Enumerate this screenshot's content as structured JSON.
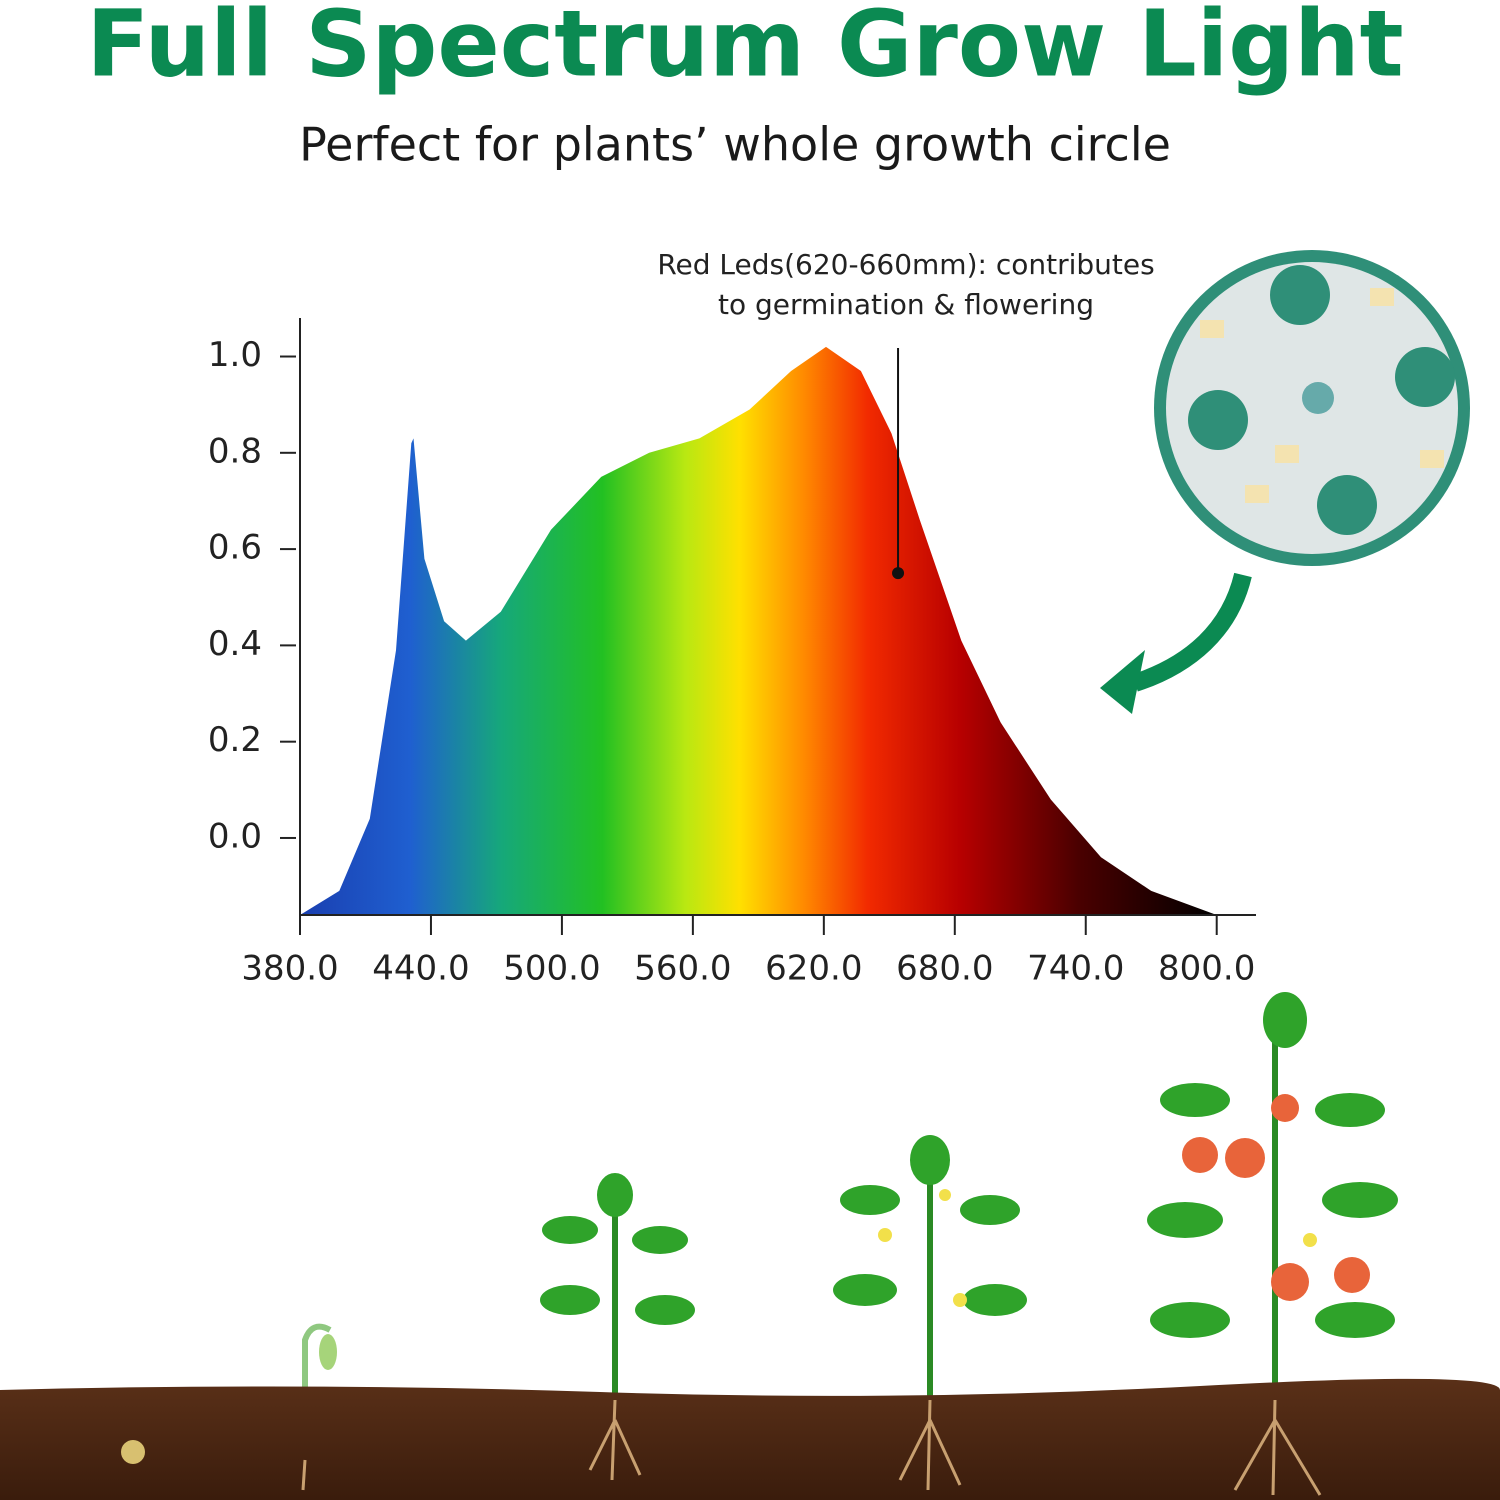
{
  "title": "Full Spectrum Grow Light",
  "subtitle": "Perfect for plants’ whole growth circle",
  "chart_data": {
    "type": "area",
    "x": [
      380,
      398,
      412,
      424,
      431,
      432,
      437,
      446,
      456,
      472,
      495,
      518,
      540,
      563,
      586,
      605,
      621,
      637,
      651,
      664,
      683,
      701,
      724,
      747,
      770,
      800
    ],
    "values": [
      -0.16,
      -0.11,
      0.04,
      0.39,
      0.82,
      0.83,
      0.58,
      0.45,
      0.41,
      0.47,
      0.64,
      0.75,
      0.8,
      0.83,
      0.89,
      0.97,
      1.02,
      0.97,
      0.84,
      0.66,
      0.41,
      0.24,
      0.08,
      -0.04,
      -0.11,
      -0.16
    ],
    "xlim": [
      380,
      818
    ],
    "ylim": [
      -0.16,
      1.08
    ],
    "xticks": [
      {
        "value": 380,
        "label": "380.0"
      },
      {
        "value": 440,
        "label": "440.0"
      },
      {
        "value": 500,
        "label": "500.0"
      },
      {
        "value": 560,
        "label": "560.0"
      },
      {
        "value": 620,
        "label": "620.0"
      },
      {
        "value": 680,
        "label": "680.0"
      },
      {
        "value": 740,
        "label": "740.0"
      },
      {
        "value": 800,
        "label": "800.0"
      }
    ],
    "yticks": [
      {
        "value": 0,
        "label": "0.0"
      },
      0.2,
      0.4,
      0.6,
      0.8,
      {
        "value": 1,
        "label": "1.0"
      }
    ],
    "annotation": {
      "lines": [
        "Red Leds(620-660mm): contributes",
        "to germination & flowering"
      ],
      "x": 654,
      "y": 0.55
    }
  }
}
